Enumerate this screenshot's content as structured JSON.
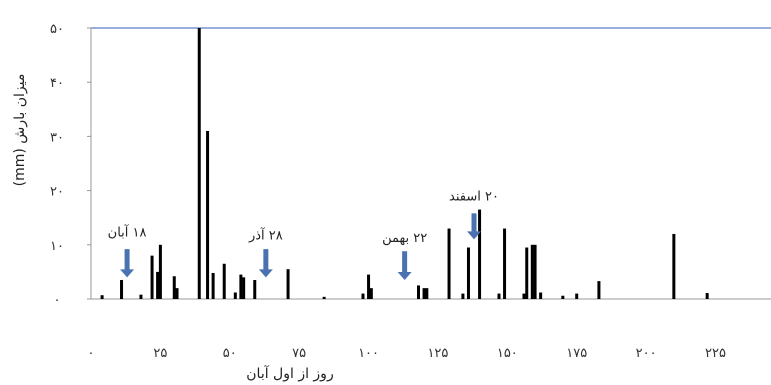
{
  "chart_data": {
    "type": "bar",
    "xlabel": "روز از اول آبان",
    "ylabel": "میزان بارش (mm)",
    "xlim": [
      0,
      245
    ],
    "ylim": [
      0,
      50
    ],
    "x_ticks": [
      0,
      25,
      50,
      75,
      100,
      125,
      150,
      175,
      200,
      225
    ],
    "x_tick_labels": [
      "۰",
      "۲۵",
      "۵۰",
      "۷۵",
      "۱۰۰",
      "۱۲۵",
      "۱۵۰",
      "۱۷۵",
      "۲۰۰",
      "۲۲۵"
    ],
    "y_ticks": [
      0,
      10,
      20,
      30,
      40,
      50
    ],
    "y_tick_labels": [
      "۰",
      "۱۰",
      "۲۰",
      "۳۰",
      "۴۰",
      "۵۰"
    ],
    "grid": false,
    "bar_color": "#000000",
    "top_line_color": "#5b7fc7",
    "arrow_color": "#4a72b0",
    "bars": [
      {
        "x": 4,
        "y": 0.7
      },
      {
        "x": 11,
        "y": 3.5
      },
      {
        "x": 18,
        "y": 0.8
      },
      {
        "x": 22,
        "y": 8
      },
      {
        "x": 24,
        "y": 5
      },
      {
        "x": 25,
        "y": 10
      },
      {
        "x": 30,
        "y": 4.2
      },
      {
        "x": 31,
        "y": 2
      },
      {
        "x": 39,
        "y": 50
      },
      {
        "x": 42,
        "y": 31
      },
      {
        "x": 44,
        "y": 4.8
      },
      {
        "x": 48,
        "y": 6.5
      },
      {
        "x": 52,
        "y": 1.2
      },
      {
        "x": 54,
        "y": 4.5
      },
      {
        "x": 55,
        "y": 4
      },
      {
        "x": 59,
        "y": 3.5
      },
      {
        "x": 71,
        "y": 5.5
      },
      {
        "x": 84,
        "y": 0.4
      },
      {
        "x": 98,
        "y": 1
      },
      {
        "x": 100,
        "y": 4.5
      },
      {
        "x": 101,
        "y": 2
      },
      {
        "x": 118,
        "y": 2.5
      },
      {
        "x": 120,
        "y": 2
      },
      {
        "x": 121,
        "y": 2
      },
      {
        "x": 129,
        "y": 13
      },
      {
        "x": 134,
        "y": 1
      },
      {
        "x": 136,
        "y": 9.5
      },
      {
        "x": 140,
        "y": 16.5
      },
      {
        "x": 147,
        "y": 1
      },
      {
        "x": 149,
        "y": 13
      },
      {
        "x": 156,
        "y": 1
      },
      {
        "x": 157,
        "y": 9.5
      },
      {
        "x": 159,
        "y": 10
      },
      {
        "x": 160,
        "y": 10
      },
      {
        "x": 162,
        "y": 1.2
      },
      {
        "x": 170,
        "y": 0.6
      },
      {
        "x": 175,
        "y": 1
      },
      {
        "x": 183,
        "y": 3.3
      },
      {
        "x": 210,
        "y": 12
      },
      {
        "x": 222,
        "y": 1.1
      }
    ],
    "annotations": [
      {
        "label": "۱۸ آبان",
        "x": 13,
        "label_y": 11.5,
        "arrow_top_y": 9.2,
        "arrow_bottom_y": 4
      },
      {
        "label": "۲۸ آذر",
        "x": 63,
        "label_y": 11,
        "arrow_top_y": 9.2,
        "arrow_bottom_y": 4
      },
      {
        "label": "۲۲ بهمن",
        "x": 113,
        "label_y": 10.5,
        "arrow_top_y": 8.8,
        "arrow_bottom_y": 3.5
      },
      {
        "label": "۲۰ اسفند",
        "x": 138,
        "label_y": 18.2,
        "arrow_top_y": 15.8,
        "arrow_bottom_y": 11
      }
    ]
  }
}
